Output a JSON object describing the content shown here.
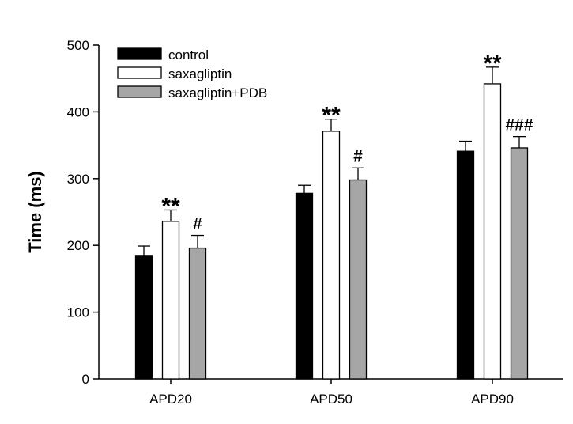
{
  "chart_data": {
    "type": "bar",
    "title": "",
    "xlabel": "",
    "ylabel": "Time (ms)",
    "ylim": [
      0,
      500
    ],
    "yticks": [
      0,
      100,
      200,
      300,
      400,
      500
    ],
    "categories": [
      "APD20",
      "APD50",
      "APD90"
    ],
    "series": [
      {
        "name": "control",
        "values": [
          185,
          278,
          341
        ],
        "errors": [
          14,
          12,
          15
        ],
        "color": "#000000",
        "significance": [
          "",
          "",
          ""
        ]
      },
      {
        "name": "saxagliptin",
        "values": [
          236,
          371,
          442
        ],
        "errors": [
          17,
          18,
          25
        ],
        "color": "#ffffff",
        "significance": [
          "**",
          "**",
          "**"
        ]
      },
      {
        "name": "saxagliptin+PDB",
        "values": [
          196,
          298,
          346
        ],
        "errors": [
          19,
          18,
          17
        ],
        "color": "#a6a6a6",
        "significance": [
          "#",
          "#",
          "###"
        ]
      }
    ],
    "legend_position": "top-left",
    "grid": false
  }
}
